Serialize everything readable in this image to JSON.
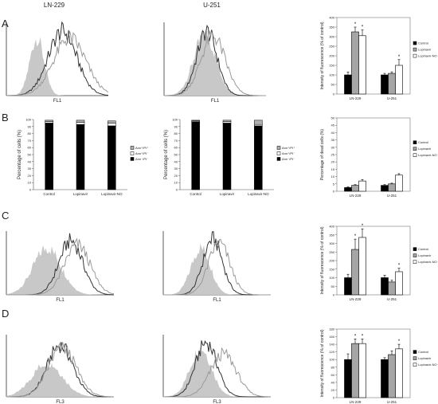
{
  "header": {
    "left": "LN-229",
    "right": "U-251"
  },
  "panels": [
    "A",
    "B",
    "C",
    "D"
  ],
  "colors": {
    "control": "#000000",
    "lopinavir": "#a6a6a6",
    "lopinavir_no": "#ffffff",
    "filled_histogram": "#c8c8c8",
    "lopinavir_line": "#555555",
    "lopinavir_no_line": "#9a9a9a"
  },
  "chart_data": [
    {
      "id": "A-hist-LN229",
      "type": "area",
      "xlabel": "FL1",
      "curves": [
        "filled",
        "dark",
        "light"
      ]
    },
    {
      "id": "A-hist-U251",
      "type": "area",
      "xlabel": "FL1",
      "curves": [
        "filled",
        "dark",
        "light"
      ]
    },
    {
      "id": "A-bar",
      "type": "bar",
      "categories": [
        "LN-229",
        "U-251"
      ],
      "ylabel": "Intensity of fluorescence (% of control)",
      "ylim": [
        0,
        400
      ],
      "yticks": [
        "0",
        "50",
        "100",
        "150",
        "200",
        "250",
        "300",
        "350",
        "400"
      ],
      "legend": [
        "Control",
        "Lopinavir",
        "Lopinavir-NO"
      ],
      "series": [
        {
          "name": "Control",
          "values": [
            100,
            100
          ],
          "errors": [
            15,
            8
          ]
        },
        {
          "name": "Lopinavir",
          "values": [
            325,
            108
          ],
          "errors": [
            25,
            8
          ]
        },
        {
          "name": "Lopinavir-NO",
          "values": [
            305,
            150
          ],
          "errors": [
            30,
            30
          ]
        }
      ],
      "significant": [
        [
          false,
          false,
          true,
          true
        ],
        [
          false,
          false
        ]
      ],
      "stars": [
        [
          "LN-229",
          "Lopinavir"
        ],
        [
          "LN-229",
          "Lopinavir-NO"
        ],
        [
          "U-251",
          "Lopinavir-NO"
        ]
      ]
    },
    {
      "id": "B-stack-LN229",
      "type": "bar",
      "categories": [
        "Control",
        "Lopinavir",
        "Lopinavir-NO"
      ],
      "ylabel": "Percentage of cells (%)",
      "ylim": [
        0,
        100
      ],
      "yticks": [
        "0",
        "10",
        "20",
        "30",
        "40",
        "50",
        "60",
        "70",
        "80",
        "90",
        "100"
      ],
      "legend": [
        "Ann⁺/PI⁺",
        "Ann⁺/PI⁻",
        "Ann⁻/PI⁻"
      ],
      "series": [
        {
          "name": "Ann⁻/PI⁻",
          "values": [
            95,
            93,
            91
          ]
        },
        {
          "name": "Ann⁺/PI⁻",
          "values": [
            2,
            3,
            4
          ]
        },
        {
          "name": "Ann⁺/PI⁺",
          "values": [
            2,
            3,
            3
          ]
        }
      ]
    },
    {
      "id": "B-stack-U251",
      "type": "bar",
      "categories": [
        "Control",
        "Lopinavir",
        "Lopinavir-NO"
      ],
      "ylabel": "Percentage of cells (%)",
      "ylim": [
        0,
        100
      ],
      "yticks": [
        "0",
        "10",
        "20",
        "30",
        "40",
        "50",
        "60",
        "70",
        "80",
        "90",
        "100"
      ],
      "legend": [
        "Ann⁺/PI⁺",
        "Ann⁺/PI⁻",
        "Ann⁻/PI⁻"
      ],
      "series": [
        {
          "name": "Ann⁻/PI⁻",
          "values": [
            97,
            95,
            91
          ]
        },
        {
          "name": "Ann⁺/PI⁻",
          "values": [
            1,
            2,
            2
          ]
        },
        {
          "name": "Ann⁺/PI⁺",
          "values": [
            1,
            2,
            6
          ]
        }
      ]
    },
    {
      "id": "B-bar",
      "type": "bar",
      "categories": [
        "LN-229",
        "U-251"
      ],
      "ylabel": "Percentage of dead cells (%)",
      "ylim": [
        0,
        50
      ],
      "yticks": [
        "0",
        "5",
        "10",
        "15",
        "20",
        "25",
        "30",
        "35",
        "40",
        "45",
        "50"
      ],
      "legend": [
        "Control",
        "Lopinavir",
        "Lopinavir-NO"
      ],
      "series": [
        {
          "name": "Control",
          "values": [
            2.5,
            4
          ],
          "errors": [
            0.5,
            0.5
          ]
        },
        {
          "name": "Lopinavir",
          "values": [
            4,
            5
          ],
          "errors": [
            0.5,
            0.5
          ]
        },
        {
          "name": "Lopinavir-NO",
          "values": [
            7,
            11
          ],
          "errors": [
            1,
            1
          ]
        }
      ],
      "stars": []
    },
    {
      "id": "C-hist-LN229",
      "type": "area",
      "xlabel": "FL1",
      "curves": [
        "filled",
        "dark",
        "light"
      ]
    },
    {
      "id": "C-hist-U251",
      "type": "area",
      "xlabel": "FL1",
      "curves": [
        "filled",
        "dark",
        "light"
      ]
    },
    {
      "id": "C-bar",
      "type": "bar",
      "categories": [
        "LN-229",
        "U-251"
      ],
      "ylabel": "Intensity of fluorescence (% of control)",
      "ylim": [
        0,
        400
      ],
      "yticks": [
        "0",
        "50",
        "100",
        "150",
        "200",
        "250",
        "300",
        "350",
        "400"
      ],
      "legend": [
        "Control",
        "Lopinavir",
        "Lopinavir-NO"
      ],
      "series": [
        {
          "name": "Control",
          "values": [
            100,
            100
          ],
          "errors": [
            20,
            15
          ]
        },
        {
          "name": "Lopinavir",
          "values": [
            265,
            75
          ],
          "errors": [
            60,
            10
          ]
        },
        {
          "name": "Lopinavir-NO",
          "values": [
            335,
            135
          ],
          "errors": [
            50,
            20
          ]
        }
      ],
      "stars": [
        [
          "LN-229",
          "Lopinavir"
        ],
        [
          "LN-229",
          "Lopinavir-NO"
        ],
        [
          "U-251",
          "Lopinavir-NO"
        ]
      ]
    },
    {
      "id": "D-hist-LN229",
      "type": "area",
      "xlabel": "FL3",
      "curves": [
        "filled",
        "dark",
        "light"
      ]
    },
    {
      "id": "D-hist-U251",
      "type": "area",
      "xlabel": "FL3",
      "curves": [
        "filled",
        "dark",
        "light"
      ]
    },
    {
      "id": "D-bar",
      "type": "bar",
      "categories": [
        "LN-229",
        "U-251"
      ],
      "ylabel": "Intensity of fluorescence (% of control)",
      "ylim": [
        0,
        180
      ],
      "yticks": [
        "0",
        "20",
        "40",
        "60",
        "80",
        "100",
        "120",
        "140",
        "160",
        "180"
      ],
      "legend": [
        "Control",
        "Lopinavir",
        "Lopinavir-NO"
      ],
      "series": [
        {
          "name": "Control",
          "values": [
            100,
            100
          ],
          "errors": [
            15,
            5
          ]
        },
        {
          "name": "Lopinavir",
          "values": [
            142,
            113
          ],
          "errors": [
            12,
            10
          ]
        },
        {
          "name": "Lopinavir-NO",
          "values": [
            142,
            128
          ],
          "errors": [
            12,
            12
          ]
        }
      ],
      "stars": [
        [
          "LN-229",
          "Lopinavir"
        ],
        [
          "LN-229",
          "Lopinavir-NO"
        ],
        [
          "U-251",
          "Lopinavir-NO"
        ]
      ]
    }
  ]
}
